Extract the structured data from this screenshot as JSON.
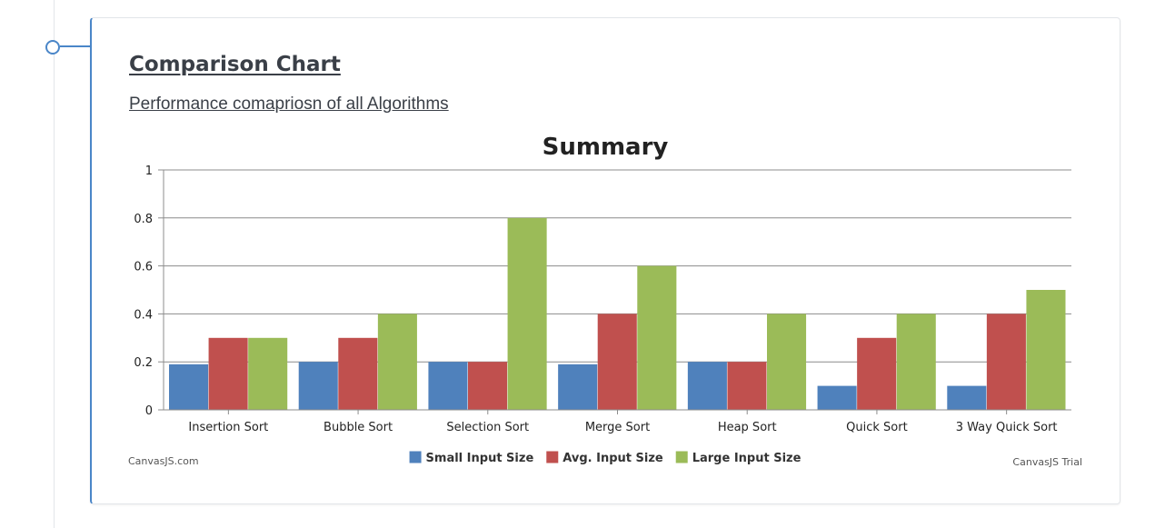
{
  "card": {
    "title": "Comparison Chart",
    "subtitle": "Performance comapriosn of all Algorithms"
  },
  "credits": {
    "left": "CanvasJS.com",
    "right": "CanvasJS Trial"
  },
  "colors": {
    "accent": "#4a86c8"
  },
  "chart_data": {
    "type": "bar",
    "title": "Summary",
    "xlabel": "",
    "ylabel": "",
    "ylim": [
      0,
      1
    ],
    "yticks": [
      0,
      0.2,
      0.4,
      0.6,
      0.8,
      1
    ],
    "ytick_labels": [
      "0",
      "0.2",
      "0.4",
      "0.6",
      "0.8",
      "1"
    ],
    "grid": true,
    "legend_position": "bottom",
    "categories": [
      "Insertion Sort",
      "Bubble Sort",
      "Selection Sort",
      "Merge Sort",
      "Heap Sort",
      "Quick Sort",
      "3 Way Quick Sort"
    ],
    "series": [
      {
        "name": "Small Input Size",
        "color": "#4f81bc",
        "values": [
          0.19,
          0.2,
          0.2,
          0.19,
          0.2,
          0.1,
          0.1
        ]
      },
      {
        "name": "Avg. Input Size",
        "color": "#c0504e",
        "values": [
          0.3,
          0.3,
          0.2,
          0.4,
          0.2,
          0.3,
          0.4
        ]
      },
      {
        "name": "Large Input Size",
        "color": "#9bbb58",
        "values": [
          0.3,
          0.4,
          0.8,
          0.6,
          0.4,
          0.4,
          0.5
        ]
      }
    ]
  }
}
